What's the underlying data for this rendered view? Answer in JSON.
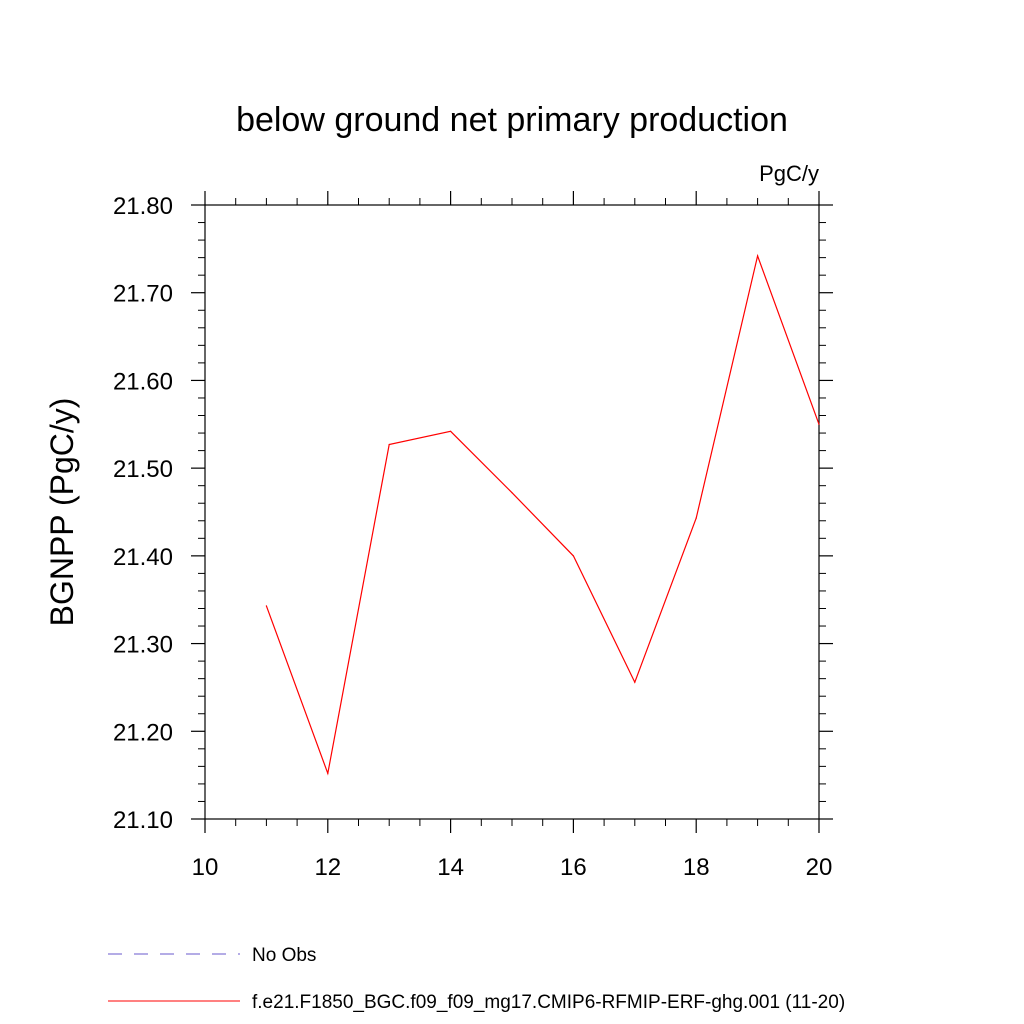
{
  "chart_data": {
    "type": "line",
    "title": "below ground net primary production",
    "units_label": "PgC/y",
    "ylabel": "BGNPP  (PgC/y)",
    "xlabel": "",
    "xlim": [
      10,
      20
    ],
    "ylim": [
      21.1,
      21.8
    ],
    "x_ticks": [
      10,
      12,
      14,
      16,
      18,
      20
    ],
    "x_tick_labels": [
      "10",
      "12",
      "14",
      "16",
      "18",
      "20"
    ],
    "y_ticks": [
      21.1,
      21.2,
      21.3,
      21.4,
      21.5,
      21.6,
      21.7,
      21.8
    ],
    "y_tick_labels": [
      "21.10",
      "21.20",
      "21.30",
      "21.40",
      "21.50",
      "21.60",
      "21.70",
      "21.80"
    ],
    "grid": false,
    "legend_position": "bottom",
    "series": [
      {
        "name": "f.e21.F1850_BGC.f09_f09_mg17.CMIP6-RFMIP-ERF-ghg.001 (11-20)",
        "color": "#ff0000",
        "dash": "solid",
        "x": [
          11,
          12,
          13,
          14,
          15,
          16,
          17,
          18,
          19,
          20
        ],
        "y": [
          21.343,
          21.152,
          21.527,
          21.542,
          21.472,
          21.4,
          21.256,
          21.443,
          21.742,
          21.55
        ]
      }
    ],
    "legend": [
      {
        "label": "No Obs",
        "color": "#6a5acd",
        "dash": "dashed"
      },
      {
        "label": "f.e21.F1850_BGC.f09_f09_mg17.CMIP6-RFMIP-ERF-ghg.001 (11-20)",
        "color": "#ff0000",
        "dash": "solid"
      }
    ]
  }
}
